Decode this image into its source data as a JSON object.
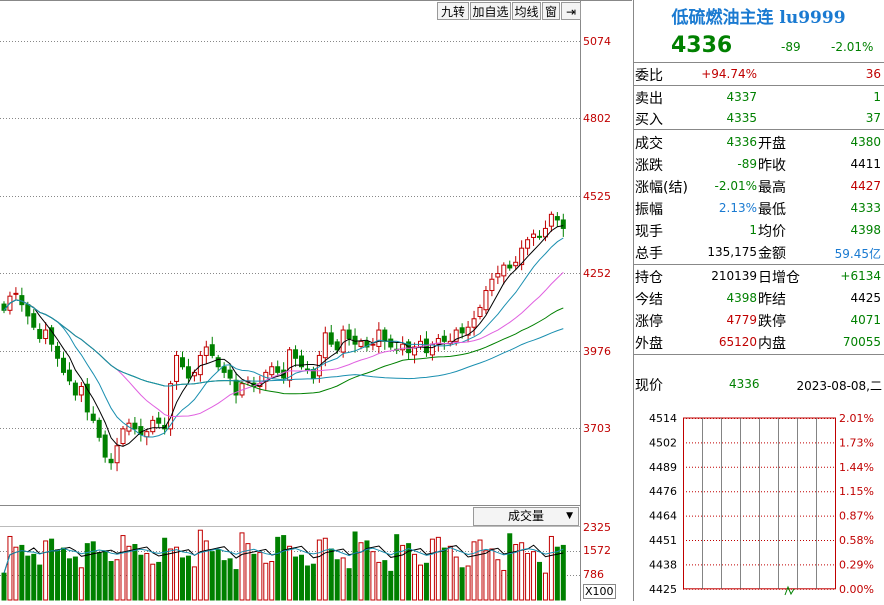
{
  "toolbar": {
    "b1": "九转",
    "b2": "加自选",
    "b3": "均线",
    "b4": "窗",
    "b5": "⇥"
  },
  "axis": {
    "p1": "5074",
    "p2": "4802",
    "p3": "4525",
    "p4": "4252",
    "p5": "3976",
    "p6": "3703",
    "v1": "2325",
    "v2": "1572",
    "v3": "786",
    "vunit": "X100"
  },
  "volume_selector": {
    "label": "成交量"
  },
  "info": {
    "title": "低硫燃油主连 lu9999",
    "price": "4336",
    "change": "-89",
    "pct": "-2.01%",
    "wb_label": "委比",
    "wb_value": "+94.74%",
    "wb_diff": "36",
    "sell_label": "卖出",
    "sell_price": "4337",
    "sell_vol": "1",
    "buy_label": "买入",
    "buy_price": "4335",
    "buy_vol": "37",
    "r1": {
      "l1": "成交",
      "v1": "4336",
      "l2": "开盘",
      "v2": "4380"
    },
    "r2": {
      "l1": "涨跌",
      "v1": "-89",
      "l2": "昨收",
      "v2": "4411"
    },
    "r3": {
      "l1": "涨幅(结)",
      "v1": "-2.01%",
      "l2": "最高",
      "v2": "4427"
    },
    "r4": {
      "l1": "振幅",
      "v1": "2.13%",
      "l2": "最低",
      "v2": "4333"
    },
    "r5": {
      "l1": "现手",
      "v1": "1",
      "l2": "均价",
      "v2": "4398"
    },
    "r6": {
      "l1": "总手",
      "v1": "135,175",
      "l2": "金额",
      "v2": "59.45亿"
    },
    "r7": {
      "l1": "持仓",
      "v1": "210139",
      "l2": "日增仓",
      "v2": "+6134"
    },
    "r8": {
      "l1": "今结",
      "v1": "4398",
      "l2": "昨结",
      "v2": "4425"
    },
    "r9": {
      "l1": "涨停",
      "v1": "4779",
      "l2": "跌停",
      "v2": "4071"
    },
    "r10": {
      "l1": "外盘",
      "v1": "65120",
      "l2": "内盘",
      "v2": "70055"
    },
    "now_label": "现价",
    "now_value": "4336",
    "date": "2023-08-08,二"
  },
  "tick_chart": {
    "left_scale": [
      "4514",
      "4502",
      "4489",
      "4476",
      "4464",
      "4451",
      "4438",
      "4425"
    ],
    "right_scale": [
      "2.01%",
      "1.73%",
      "1.44%",
      "1.15%",
      "0.87%",
      "0.58%",
      "0.29%",
      "0.00%"
    ]
  },
  "colors": {
    "up": "#c00000",
    "down": "#008000",
    "ma5": "#000000",
    "ma10": "#1a8fb0",
    "ma20": "#e060e0",
    "ma40": "#008000",
    "ma60": "#1a8fb0"
  }
}
